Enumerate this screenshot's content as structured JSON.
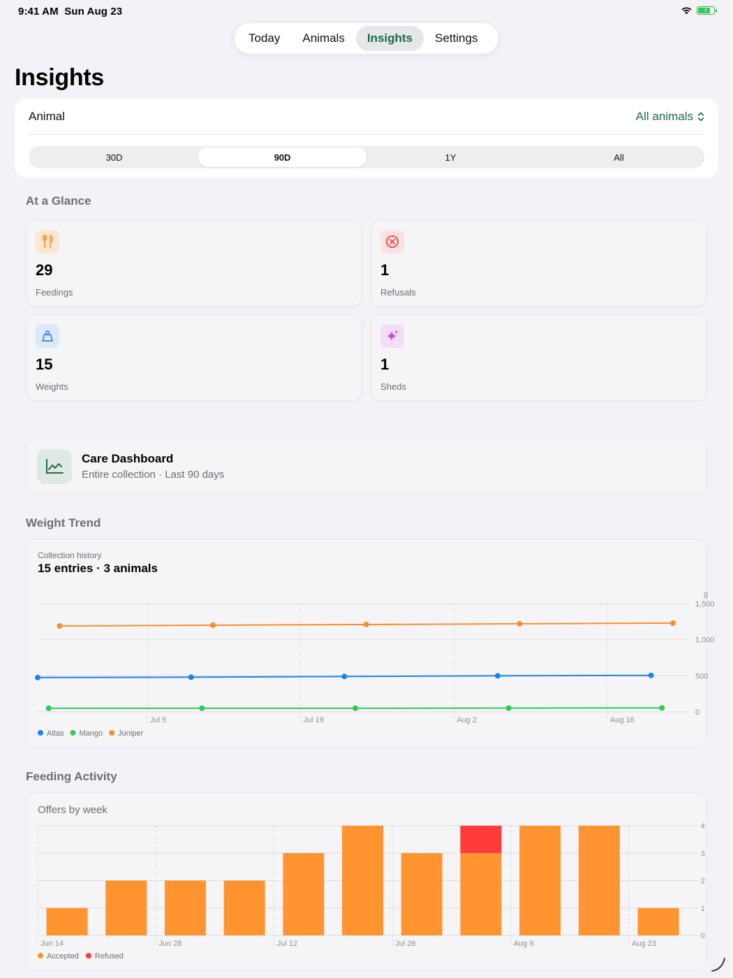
{
  "status_bar": {
    "time": "9:41 AM",
    "date": "Sun Aug 23"
  },
  "tabs": [
    {
      "label": "Today"
    },
    {
      "label": "Animals"
    },
    {
      "label": "Insights",
      "active": true
    },
    {
      "label": "Settings"
    }
  ],
  "page_title": "Insights",
  "filter": {
    "label": "Animal",
    "value": "All animals",
    "ranges": [
      "30D",
      "90D",
      "1Y",
      "All"
    ],
    "active_range": "90D"
  },
  "glance": {
    "title": "At a Glance",
    "stats": [
      {
        "value": "29",
        "label": "Feedings",
        "icon": "fork-knife-icon",
        "color": "#f59a3b"
      },
      {
        "value": "1",
        "label": "Refusals",
        "icon": "x-circle-icon",
        "color": "#ef4444"
      },
      {
        "value": "15",
        "label": "Weights",
        "icon": "scale-icon",
        "color": "#3b82f6"
      },
      {
        "value": "1",
        "label": "Sheds",
        "icon": "sparkles-icon",
        "color": "#c04be6"
      }
    ]
  },
  "dashboard": {
    "title": "Care Dashboard",
    "subtitle": "Entire collection · Last 90 days",
    "icon": "line-chart-icon"
  },
  "weight_trend": {
    "section_title": "Weight Trend",
    "kicker": "Collection history",
    "headline": "15 entries · 3 animals"
  },
  "feeding_activity": {
    "section_title": "Feeding Activity",
    "subtitle": "Offers by week"
  },
  "chart_data": [
    {
      "type": "line",
      "unit": "g",
      "ylim": [
        0,
        1500
      ],
      "y_ticks": [
        "0",
        "500",
        "1,000",
        "1,500"
      ],
      "x_ticks": [
        "Jul 5",
        "Jul 19",
        "Aug 2",
        "Aug 16"
      ],
      "grid": true,
      "legend_position": "bottom-left",
      "series": [
        {
          "name": "Atlas",
          "color": "#1a84f0",
          "x": [
            "Jun 25",
            "Jul 9",
            "Jul 23",
            "Aug 6",
            "Aug 20"
          ],
          "values": [
            475,
            480,
            490,
            500,
            505
          ]
        },
        {
          "name": "Mango",
          "color": "#34c759",
          "x": [
            "Jun 26",
            "Jul 10",
            "Jul 24",
            "Aug 7",
            "Aug 21"
          ],
          "values": [
            50,
            50,
            50,
            52,
            55
          ]
        },
        {
          "name": "Juniper",
          "color": "#ff8c2a",
          "x": [
            "Jun 27",
            "Jul 11",
            "Jul 25",
            "Aug 8",
            "Aug 22"
          ],
          "values": [
            1190,
            1200,
            1210,
            1220,
            1230
          ]
        }
      ]
    },
    {
      "type": "bar",
      "stacked": true,
      "categories": [
        "Jun 14",
        "Jun 21",
        "Jun 28",
        "Jul 5",
        "Jul 12",
        "Jul 19",
        "Jul 26",
        "Aug 2",
        "Aug 9",
        "Aug 16",
        "Aug 23"
      ],
      "x_ticks": [
        "Jun 14",
        "Jun 28",
        "Jul 12",
        "Jul 26",
        "Aug 9",
        "Aug 23"
      ],
      "ylim": [
        0,
        4
      ],
      "y_ticks": [
        "0",
        "1",
        "2",
        "3",
        "4"
      ],
      "grid": true,
      "legend_position": "bottom-left",
      "series": [
        {
          "name": "Accepted",
          "color": "#ff9430",
          "values": [
            1,
            2,
            2,
            2,
            3,
            4,
            3,
            3,
            4,
            4,
            1
          ]
        },
        {
          "name": "Refused",
          "color": "#ff3b3b",
          "values": [
            0,
            0,
            0,
            0,
            0,
            0,
            0,
            1,
            0,
            0,
            0
          ]
        }
      ]
    }
  ]
}
